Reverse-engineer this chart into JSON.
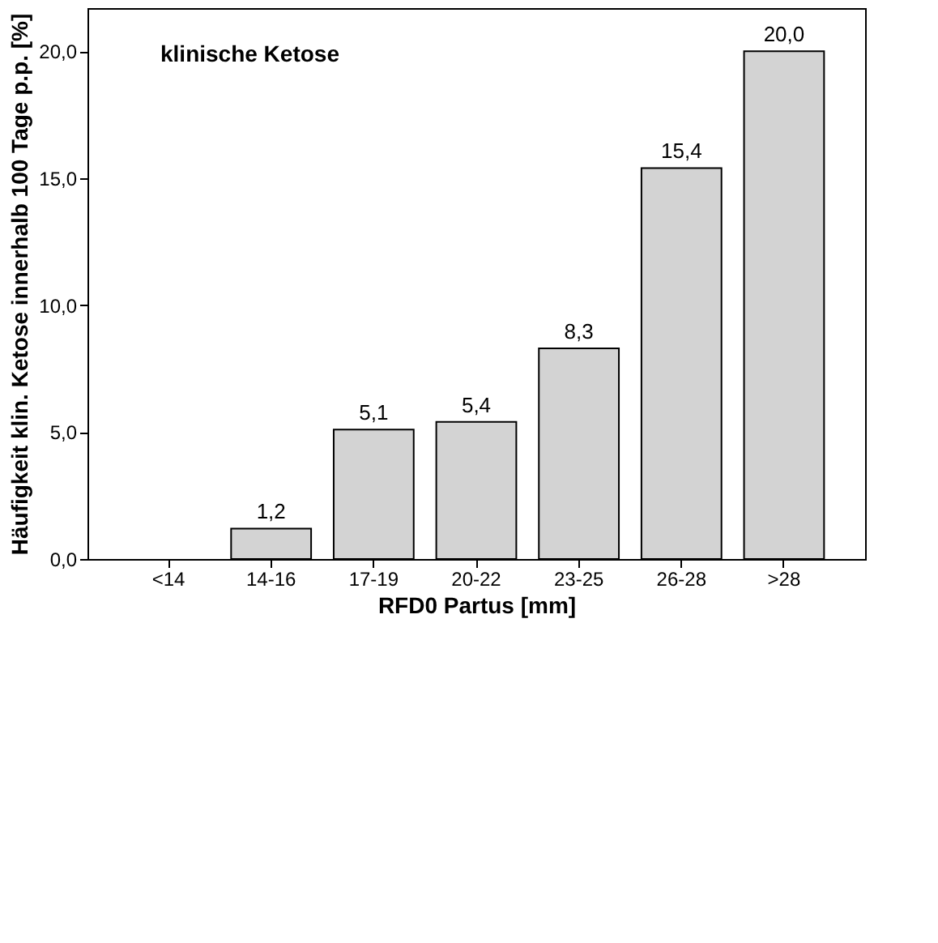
{
  "chart_data": {
    "type": "bar",
    "title": "klinische Ketose",
    "xlabel": "RFD0 Partus [mm]",
    "ylabel": "Häufigkeit klin. Ketose innerhalb 100 Tage p.p. [%]",
    "categories": [
      "<14",
      "14-16",
      "17-19",
      "20-22",
      "23-25",
      "26-28",
      ">28"
    ],
    "values": [
      null,
      1.2,
      5.1,
      5.4,
      8.3,
      15.4,
      20.0
    ],
    "value_labels": [
      null,
      "1,2",
      "5,1",
      "5,4",
      "8,3",
      "15,4",
      "20,0"
    ],
    "color": "#d3d3d3",
    "ylim": [
      0,
      21.7
    ],
    "yticks": [
      {
        "value": 0,
        "label": "0,0"
      },
      {
        "value": 5,
        "label": "5,0"
      },
      {
        "value": 10,
        "label": "10,0"
      },
      {
        "value": 15,
        "label": "15,0"
      },
      {
        "value": 20,
        "label": "20,0"
      }
    ],
    "grid": false
  }
}
